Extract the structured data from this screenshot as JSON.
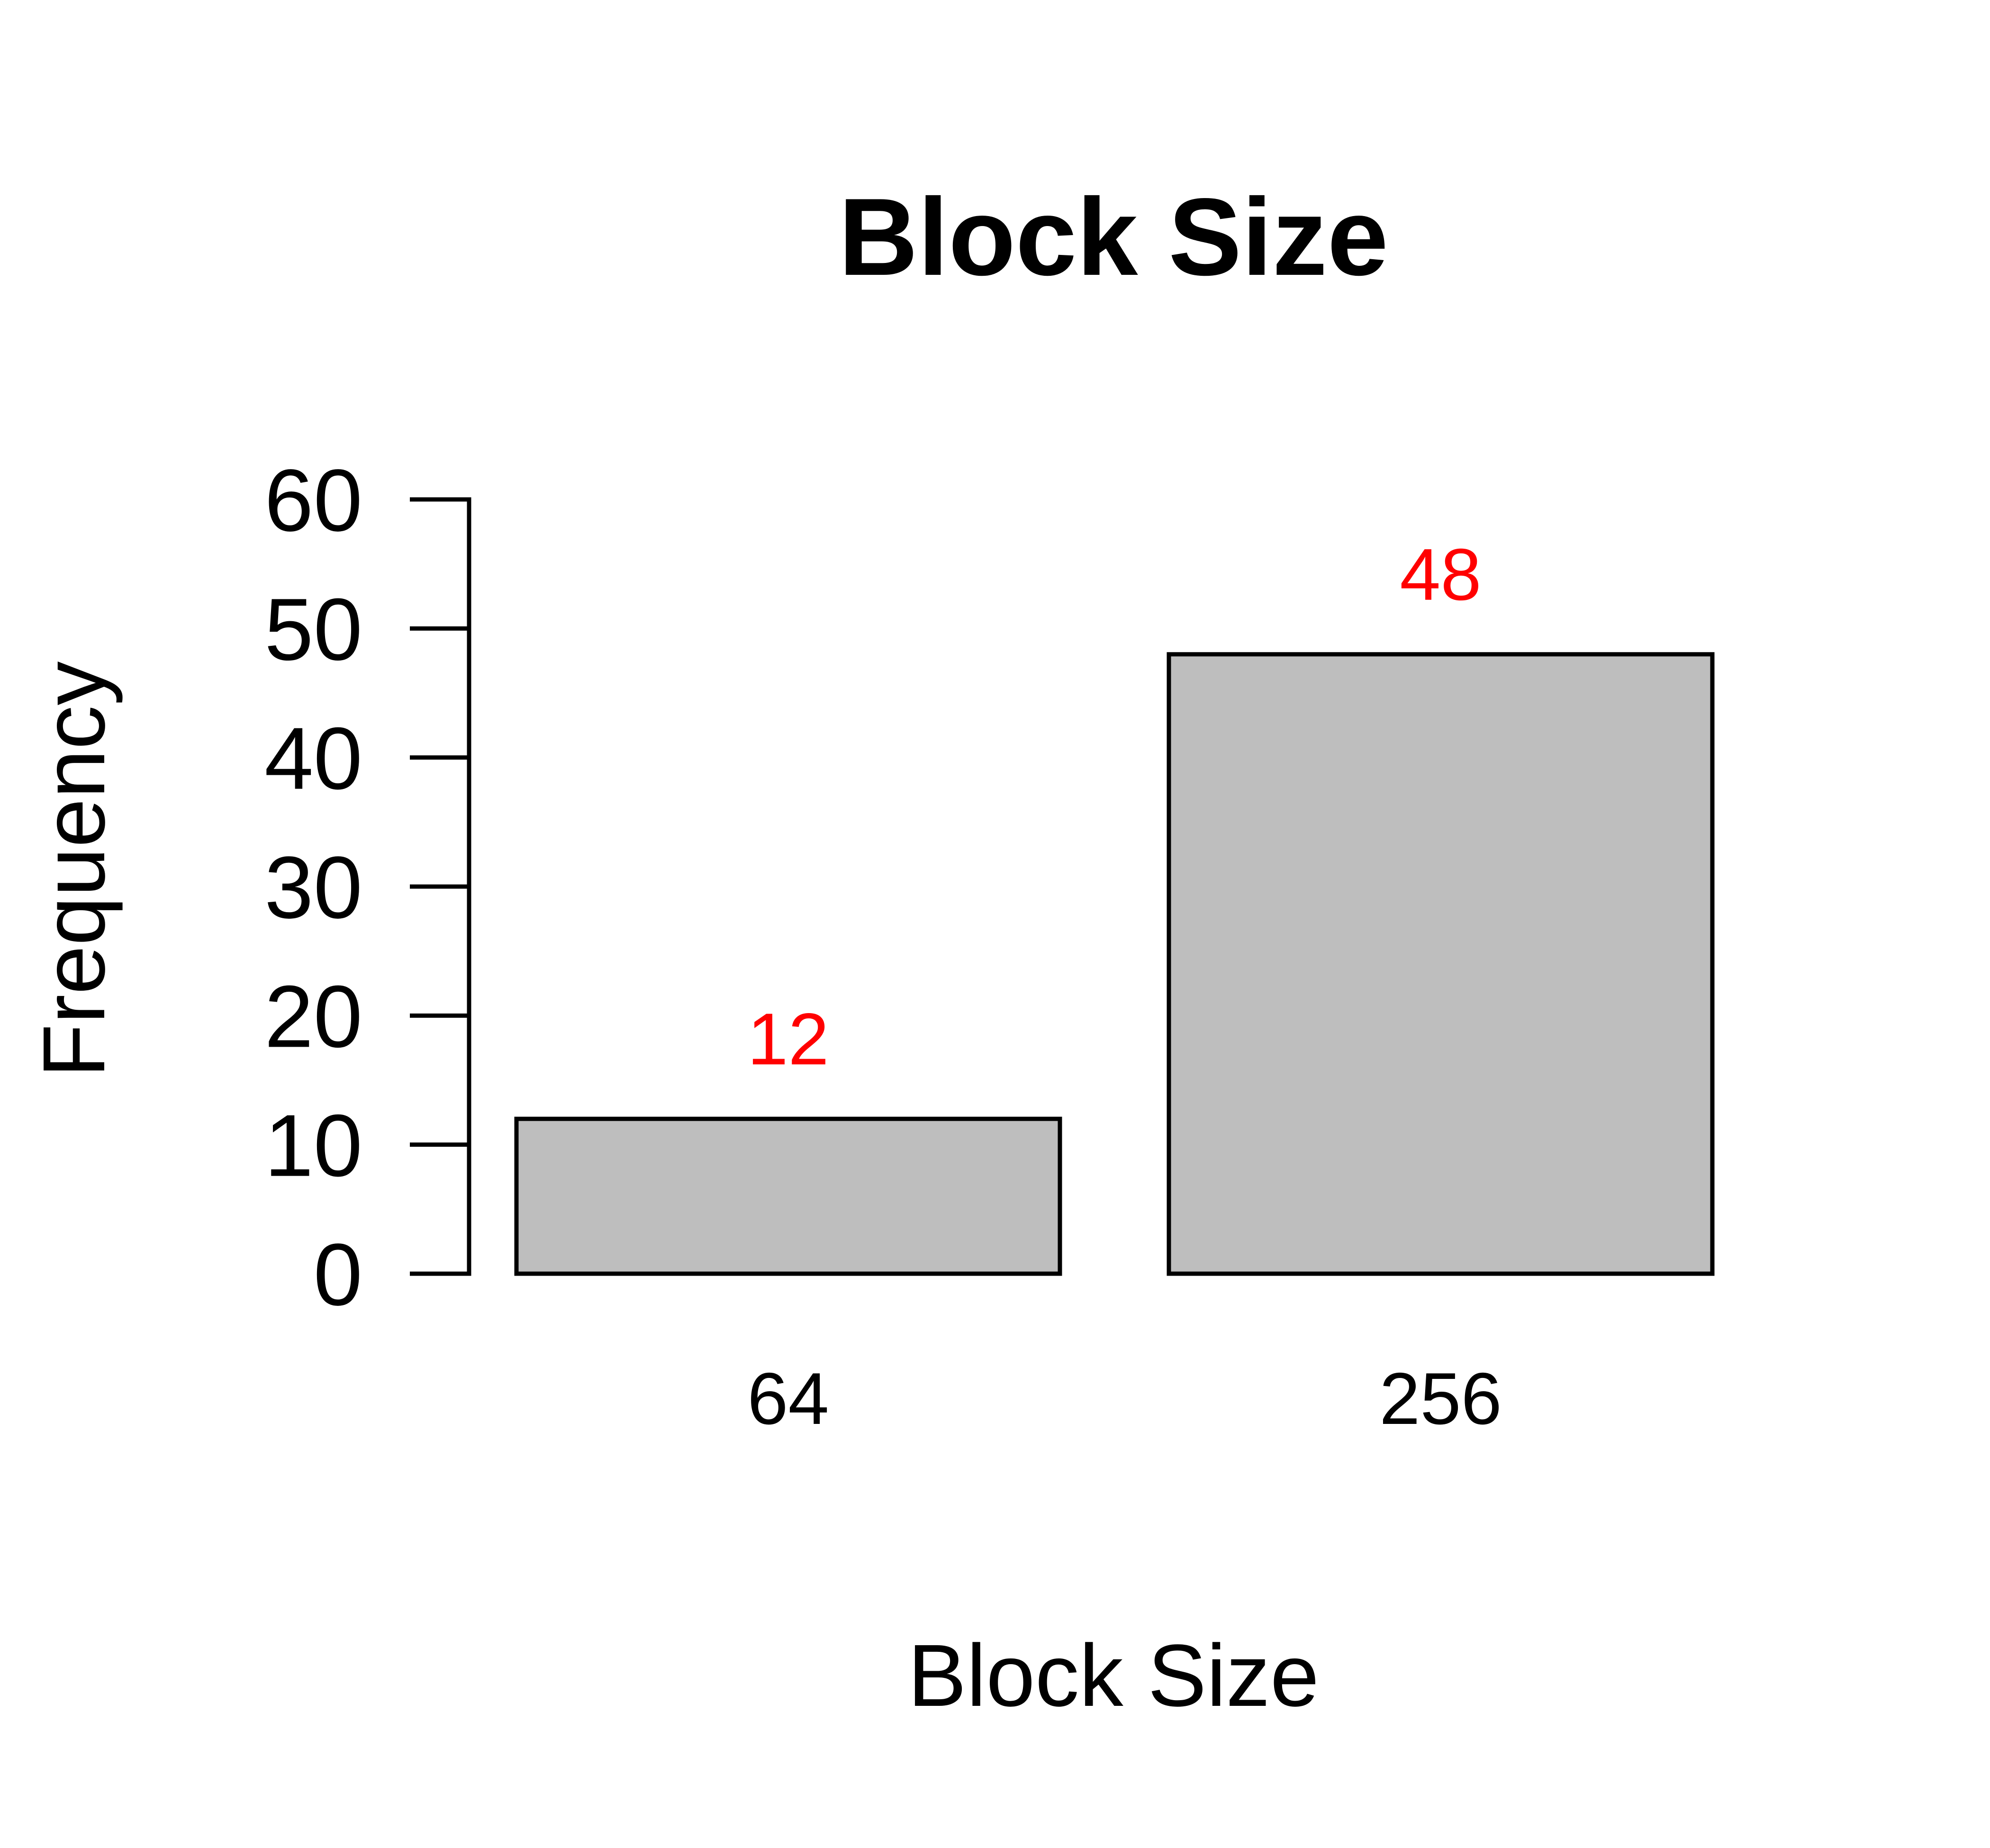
{
  "chart_data": {
    "type": "bar",
    "title": "Block Size",
    "xlabel": "Block Size",
    "ylabel": "Frequency",
    "categories": [
      "64",
      "256"
    ],
    "values": [
      12,
      48
    ],
    "data_labels": [
      "12",
      "48"
    ],
    "ylim": [
      0,
      60
    ],
    "yticks": [
      0,
      10,
      20,
      30,
      40,
      50,
      60
    ],
    "ytick_labels": [
      "0",
      "10",
      "20",
      "30",
      "40",
      "50",
      "60"
    ],
    "grid": false,
    "legend": "none",
    "colors": {
      "bar_fill": "#bebebe",
      "bar_stroke": "#000000",
      "data_label": "#ff0000",
      "axis": "#000000",
      "background": "#ffffff"
    }
  }
}
